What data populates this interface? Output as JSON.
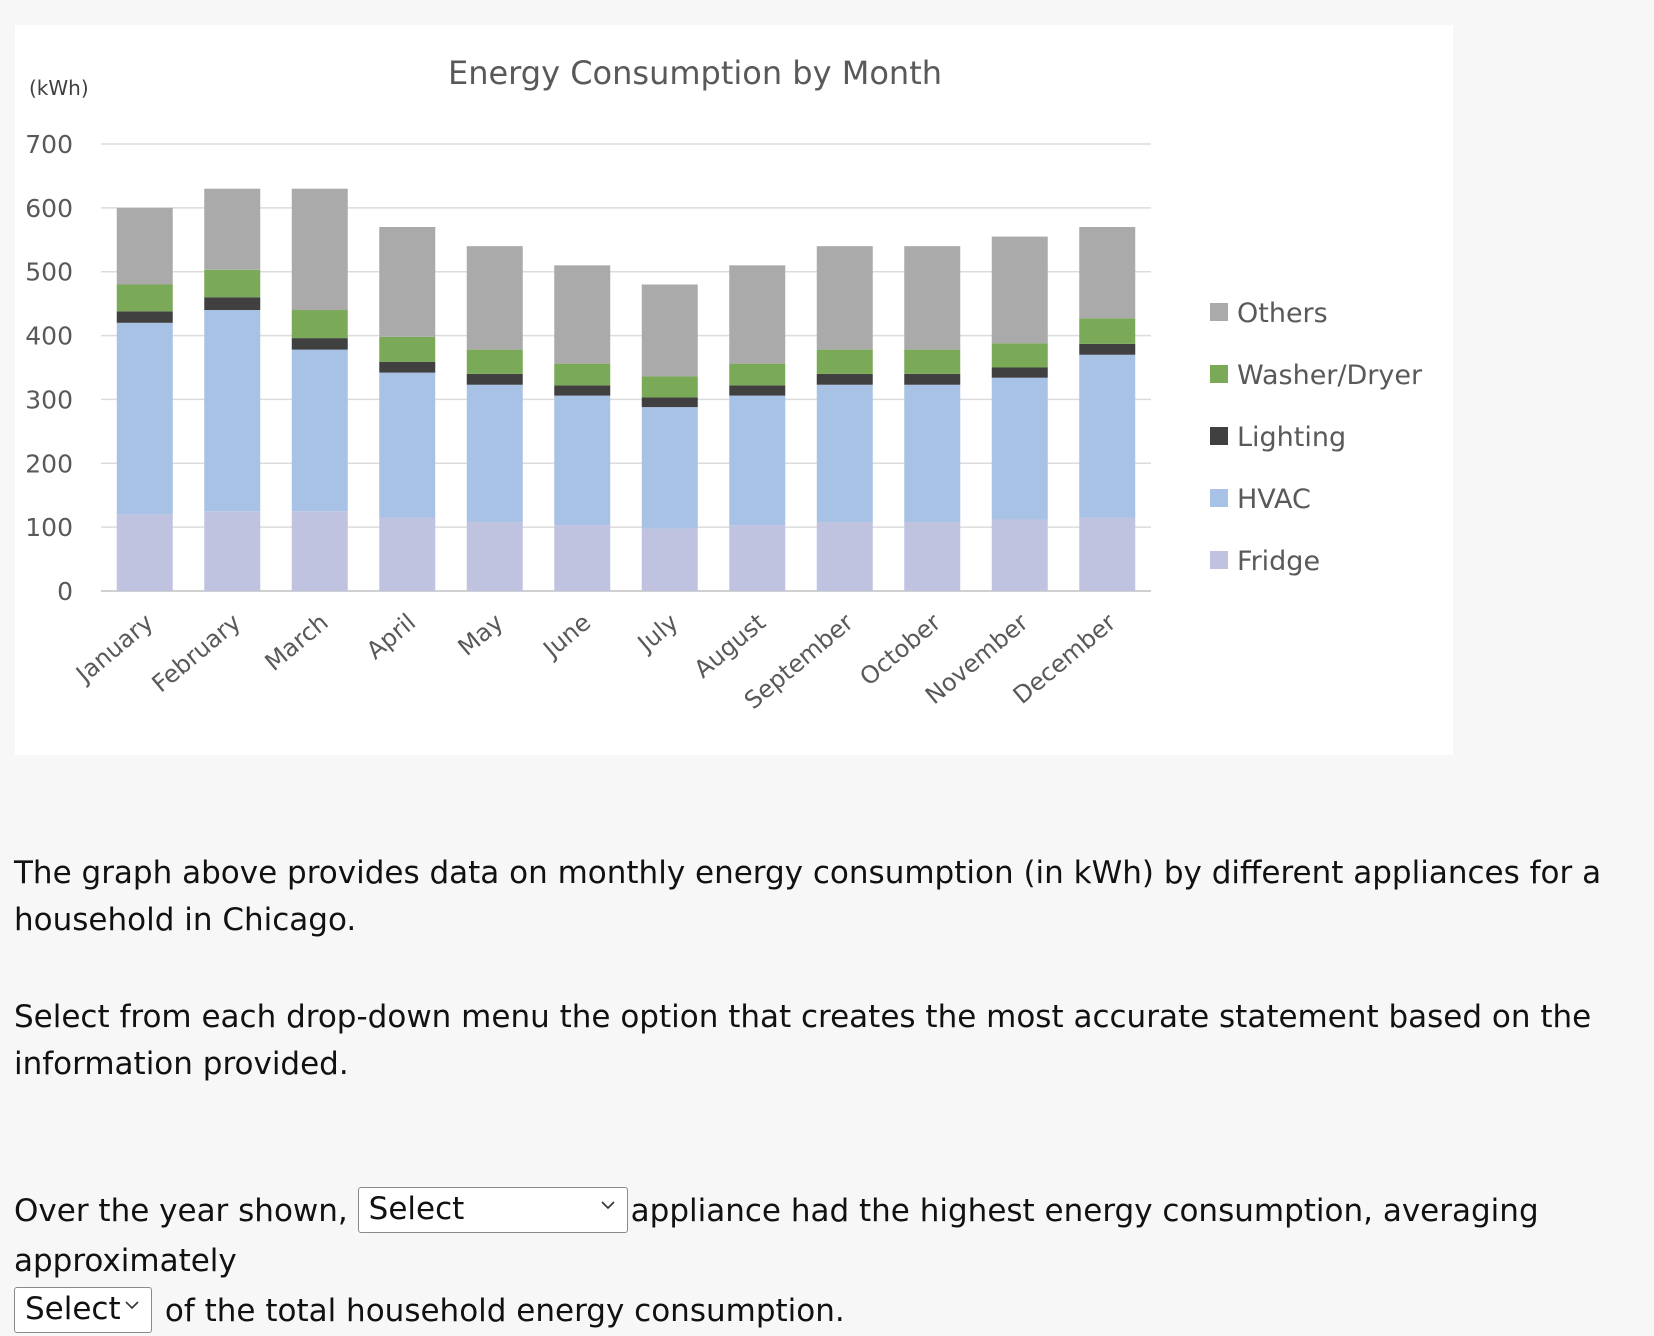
{
  "chart_data": {
    "type": "bar",
    "stacked": true,
    "title": "Energy Consumption by Month",
    "ylabel": "(kWh)",
    "xlabel": "",
    "ylim": [
      0,
      700
    ],
    "yticks": [
      "0",
      "100",
      "200",
      "300",
      "400",
      "500",
      "600",
      "700"
    ],
    "ytick_values": [
      0,
      100,
      200,
      300,
      400,
      500,
      600,
      700
    ],
    "grid": true,
    "legend_position": "right",
    "categories": [
      "January",
      "February",
      "March",
      "April",
      "May",
      "June",
      "July",
      "August",
      "September",
      "October",
      "November",
      "December"
    ],
    "series": [
      {
        "name": "Fridge",
        "color": "#bfc3e0",
        "values": [
          120,
          125,
          125,
          115,
          108,
          103,
          98,
          103,
          108,
          108,
          112,
          115
        ]
      },
      {
        "name": "HVAC",
        "color": "#a7c2e4",
        "values": [
          300,
          315,
          253,
          227,
          215,
          203,
          190,
          203,
          215,
          215,
          222,
          255
        ]
      },
      {
        "name": "Lighting",
        "color": "#404040",
        "values": [
          18,
          20,
          18,
          17,
          17,
          16,
          15,
          16,
          17,
          17,
          16,
          17
        ]
      },
      {
        "name": "Washer/Dryer",
        "color": "#7aa957",
        "values": [
          42,
          43,
          44,
          39,
          38,
          34,
          33,
          34,
          38,
          38,
          38,
          40
        ]
      },
      {
        "name": "Others",
        "color": "#aaaaaa",
        "values": [
          120,
          127,
          190,
          172,
          162,
          154,
          144,
          154,
          162,
          162,
          167,
          143
        ]
      }
    ],
    "legend_order": [
      "Others",
      "Washer/Dryer",
      "Lighting",
      "HVAC",
      "Fridge"
    ]
  },
  "text": {
    "paragraph_1": "The graph above provides data on monthly energy consumption (in kWh) by different appliances for a household in Chicago.",
    "paragraph_2": "Select from each drop-down menu the option that creates the most accurate statement based on the information provided.",
    "question_part_1": "Over the year shown,",
    "question_part_2": "appliance had the highest energy consumption, averaging approximately",
    "question_part_3": "of the total household energy consumption."
  },
  "dropdowns": {
    "appliance": {
      "selected": "Select"
    },
    "percent": {
      "selected": "Select"
    }
  }
}
